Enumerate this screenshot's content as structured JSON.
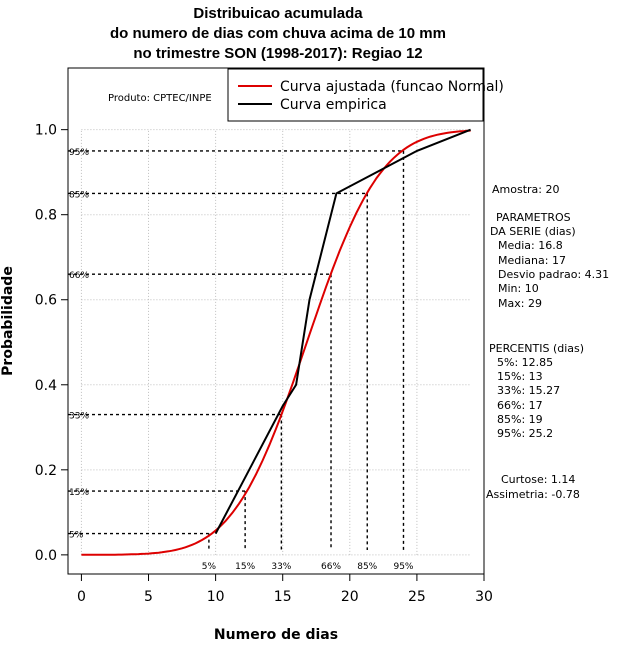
{
  "chart_data": {
    "type": "line",
    "title_lines": [
      "Distribuicao acumulada",
      "do numero de dias com chuva acima de 10 mm",
      "no trimestre SON (1998-2017): Regiao 12"
    ],
    "xlabel": "Numero de dias",
    "ylabel": "Probabilidade",
    "xlim": [
      -1,
      30
    ],
    "ylim": [
      -0.045,
      1.145
    ],
    "x_ticks": [
      0,
      5,
      10,
      15,
      20,
      25,
      30
    ],
    "y_ticks": [
      0.0,
      0.2,
      0.4,
      0.6,
      0.8,
      1.0
    ],
    "x_tick_labels": [
      "0",
      "5",
      "10",
      "15",
      "20",
      "25",
      "30"
    ],
    "y_tick_labels": [
      "0.0",
      "0.2",
      "0.4",
      "0.6",
      "0.8",
      "1.0"
    ],
    "grid": true,
    "product_label": "Produto: CPTEC/INPE",
    "legend": {
      "position": "top-right",
      "entries": [
        "Curva ajustada (funcao Normal)",
        "Curva empirica"
      ]
    },
    "series": [
      {
        "name": "Curva ajustada (funcao Normal)",
        "color": "#dd0000",
        "kind": "normal_cdf",
        "mean": 16.8,
        "sd": 4.31,
        "x_range": [
          0,
          29
        ]
      },
      {
        "name": "Curva empirica",
        "color": "#000000",
        "kind": "points",
        "x": [
          10,
          12.5,
          15,
          16,
          17,
          19,
          25,
          29
        ],
        "y": [
          0.05,
          0.2,
          0.35,
          0.4,
          0.6,
          0.85,
          0.95,
          1.0
        ]
      }
    ],
    "percentile_markers": [
      {
        "label": "5%",
        "p": 0.05,
        "x": 9.5
      },
      {
        "label": "15%",
        "p": 0.15,
        "x": 12.2
      },
      {
        "label": "33%",
        "p": 0.33,
        "x": 14.9
      },
      {
        "label": "66%",
        "p": 0.66,
        "x": 18.6
      },
      {
        "label": "85%",
        "p": 0.85,
        "x": 21.3
      },
      {
        "label": "95%",
        "p": 0.95,
        "x": 24.0
      }
    ]
  },
  "side_panel": {
    "sample": "Amostra: 20",
    "parameters_title": "PARAMETROS",
    "parameters_subtitle": "DA SERIE (dias)",
    "parameters": [
      "Media: 16.8",
      "Mediana: 17",
      "Desvio padrao: 4.31",
      "Min: 10",
      "Max: 29"
    ],
    "percentiles_title": "PERCENTIS (dias)",
    "percentiles": [
      "5%: 12.85",
      "15%: 13",
      "33%: 15.27",
      "66%: 17",
      "85%: 19",
      "95%: 25.2"
    ],
    "kurtosis": "Curtose: 1.14",
    "skewness": "Assimetria: -0.78"
  }
}
